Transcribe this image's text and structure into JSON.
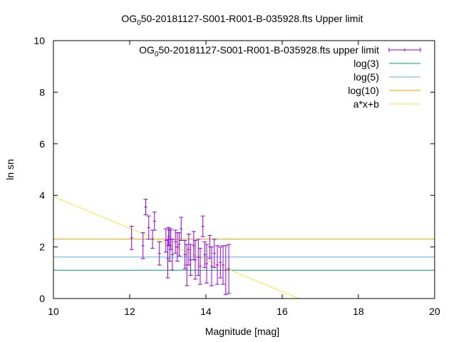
{
  "chart_data": {
    "type": "scatter",
    "title": {
      "main": "OG",
      "sub": "0",
      "rest": "50-20181127-S001-R001-B-035928.fts Upper limit"
    },
    "xlabel": "Magnitude [mag]",
    "ylabel": "ln sn",
    "xlim": [
      10,
      20
    ],
    "ylim": [
      0,
      10
    ],
    "x_ticks": [
      "10",
      "12",
      "14",
      "16",
      "18",
      "20"
    ],
    "y_ticks": [
      "0",
      "2",
      "4",
      "6",
      "8",
      "10"
    ],
    "legend_position": "top-right",
    "grid": false,
    "series": [
      {
        "name_main": "OG",
        "name_sub": "0",
        "name_rest": "50-20181127-S001-R001-B-035928.fts upper limit",
        "kind": "errorbars",
        "color": "#9400d3",
        "points": [
          {
            "x": 12.05,
            "y": 2.35,
            "err": 0.45
          },
          {
            "x": 12.35,
            "y": 2.05,
            "err": 0.5
          },
          {
            "x": 12.42,
            "y": 3.55,
            "err": 0.3
          },
          {
            "x": 12.5,
            "y": 2.75,
            "err": 0.45
          },
          {
            "x": 12.6,
            "y": 2.3,
            "err": 0.35
          },
          {
            "x": 12.65,
            "y": 3.0,
            "err": 0.35
          },
          {
            "x": 12.78,
            "y": 1.75,
            "err": 0.45
          },
          {
            "x": 12.95,
            "y": 2.25,
            "err": 0.45
          },
          {
            "x": 13.0,
            "y": 1.55,
            "err": 0.75
          },
          {
            "x": 13.02,
            "y": 2.4,
            "err": 0.35
          },
          {
            "x": 13.05,
            "y": 2.05,
            "err": 0.6
          },
          {
            "x": 13.08,
            "y": 2.3,
            "err": 0.4
          },
          {
            "x": 13.12,
            "y": 1.7,
            "err": 0.6
          },
          {
            "x": 13.2,
            "y": 2.2,
            "err": 0.45
          },
          {
            "x": 13.25,
            "y": 2.0,
            "err": 0.55
          },
          {
            "x": 13.3,
            "y": 2.1,
            "err": 0.45
          },
          {
            "x": 13.35,
            "y": 2.7,
            "err": 0.45
          },
          {
            "x": 13.45,
            "y": 1.7,
            "err": 0.55
          },
          {
            "x": 13.5,
            "y": 1.3,
            "err": 0.8
          },
          {
            "x": 13.55,
            "y": 1.9,
            "err": 0.6
          },
          {
            "x": 13.6,
            "y": 1.5,
            "err": 0.6
          },
          {
            "x": 13.68,
            "y": 2.05,
            "err": 0.55
          },
          {
            "x": 13.72,
            "y": 1.5,
            "err": 0.75
          },
          {
            "x": 13.8,
            "y": 1.6,
            "err": 0.7
          },
          {
            "x": 13.85,
            "y": 1.25,
            "err": 0.7
          },
          {
            "x": 13.92,
            "y": 2.8,
            "err": 0.4
          },
          {
            "x": 13.97,
            "y": 1.7,
            "err": 0.5
          },
          {
            "x": 14.02,
            "y": 1.35,
            "err": 0.75
          },
          {
            "x": 14.1,
            "y": 2.0,
            "err": 0.45
          },
          {
            "x": 14.15,
            "y": 1.25,
            "err": 0.75
          },
          {
            "x": 14.22,
            "y": 1.75,
            "err": 0.55
          },
          {
            "x": 14.3,
            "y": 1.3,
            "err": 0.75
          },
          {
            "x": 14.38,
            "y": 1.4,
            "err": 0.6
          },
          {
            "x": 14.45,
            "y": 1.3,
            "err": 0.75
          },
          {
            "x": 14.52,
            "y": 1.1,
            "err": 0.95
          },
          {
            "x": 14.6,
            "y": 1.15,
            "err": 0.95
          }
        ]
      },
      {
        "name": "log(3)",
        "kind": "hline",
        "color": "#009e73",
        "y": 1.0986
      },
      {
        "name": "log(5)",
        "kind": "hline",
        "color": "#56b4e9",
        "y": 1.6094
      },
      {
        "name": "log(10)",
        "kind": "hline",
        "color": "#e69f00",
        "y": 2.3026
      },
      {
        "name": "a*x+b",
        "kind": "line",
        "color": "#f0e442",
        "x": [
          10,
          16.44
        ],
        "y": [
          3.95,
          0
        ]
      }
    ]
  }
}
